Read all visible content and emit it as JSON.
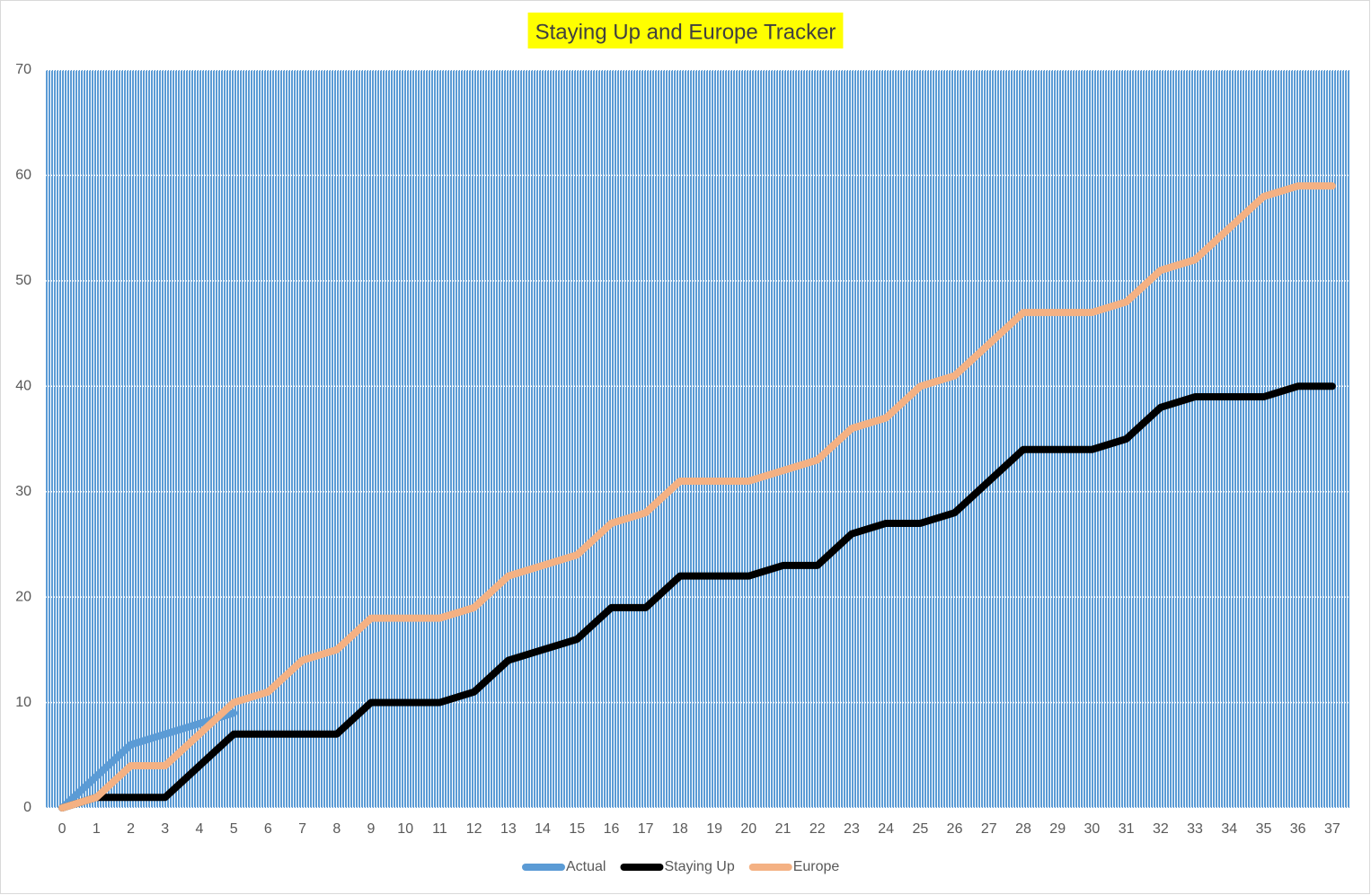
{
  "chart_data": {
    "type": "line",
    "title": "Staying Up and Europe Tracker",
    "categories": [
      "0",
      "1",
      "2",
      "3",
      "4",
      "5",
      "6",
      "7",
      "8",
      "9",
      "10",
      "11",
      "12",
      "13",
      "14",
      "15",
      "16",
      "17",
      "18",
      "19",
      "20",
      "21",
      "22",
      "23",
      "24",
      "25",
      "26",
      "27",
      "28",
      "29",
      "30",
      "31",
      "32",
      "33",
      "34",
      "35",
      "36",
      "37"
    ],
    "series": [
      {
        "name": "Actual",
        "color": "#5b9bd5",
        "values": [
          0,
          3,
          6,
          7,
          8,
          9,
          null,
          null,
          null,
          null,
          null,
          null,
          null,
          null,
          null,
          null,
          null,
          null,
          null,
          null,
          null,
          null,
          null,
          null,
          null,
          null,
          null,
          null,
          null,
          null,
          null,
          null,
          null,
          null,
          null,
          null,
          null,
          null
        ]
      },
      {
        "name": "Staying Up",
        "color": "#000000",
        "values": [
          0,
          1,
          1,
          1,
          4,
          7,
          7,
          7,
          7,
          10,
          10,
          10,
          11,
          14,
          15,
          16,
          19,
          19,
          22,
          22,
          22,
          23,
          23,
          26,
          27,
          27,
          28,
          31,
          34,
          34,
          34,
          35,
          38,
          39,
          39,
          39,
          40,
          40
        ]
      },
      {
        "name": "Europe",
        "color": "#f4b183",
        "values": [
          0,
          1,
          4,
          4,
          7,
          10,
          11,
          14,
          15,
          18,
          18,
          18,
          19,
          22,
          23,
          24,
          27,
          28,
          31,
          31,
          31,
          32,
          33,
          36,
          37,
          40,
          41,
          44,
          47,
          47,
          47,
          48,
          51,
          52,
          55,
          58,
          59,
          59
        ]
      }
    ],
    "ylim": [
      0,
      70
    ],
    "yticks": [
      0,
      10,
      20,
      30,
      40,
      50,
      60,
      70
    ],
    "grid": true,
    "legend": "bottom"
  }
}
